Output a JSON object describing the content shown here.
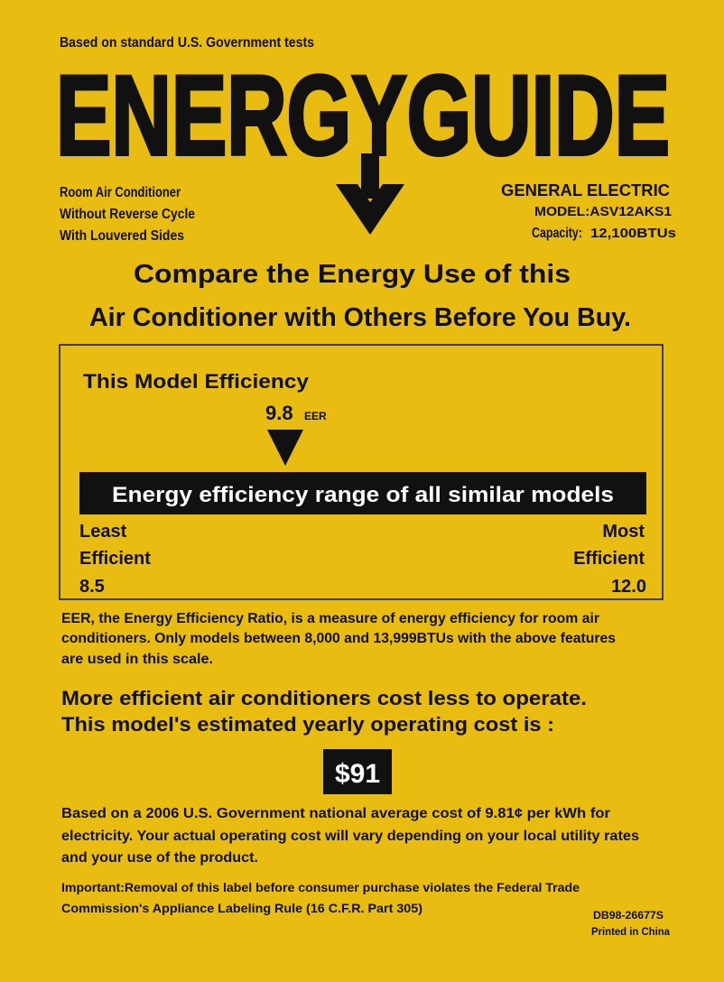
{
  "colors": {
    "background": "#E9BC12",
    "ink": "#111111",
    "inverse_text": "#FFFFFF"
  },
  "header": {
    "tagline": "Based on standard U.S. Government tests",
    "logo_text": "ENERGYGUIDE",
    "arrow_icon": "down-arrow-icon"
  },
  "product": {
    "type_lines": [
      "Room Air Conditioner",
      "Without Reverse Cycle",
      "With  Louvered Sides"
    ],
    "manufacturer": "GENERAL ELECTRIC",
    "model": "MODEL:ASV12AKS1",
    "capacity_label": "Capacity:",
    "capacity_value": "12,100BTUs"
  },
  "headline": [
    "Compare the Energy Use of this",
    "Air Conditioner with Others Before You Buy."
  ],
  "efficiency": {
    "title": "This Model Efficiency",
    "value": "9.8",
    "unit": "EER",
    "range_bar": "Energy efficiency range of all similar models",
    "least_label": [
      "Least",
      "Efficient"
    ],
    "most_label": [
      "Most",
      "Efficient"
    ],
    "min": "8.5",
    "max": "12.0",
    "note_lines": [
      "EER, the Energy Efficiency Ratio, is  a measure of energy efficiency for room air",
      "conditioners. Only models between 8,000 and 13,999BTUs with the above features",
      "are used in this scale."
    ]
  },
  "cost": {
    "lines": [
      "More efficient air conditioners cost less to operate.",
      "This model's estimated yearly operating cost is :"
    ],
    "value": "$91",
    "basis_lines": [
      "Based on a 2006 U.S. Government national average cost of 9.81¢    per kWh for",
      "electricity.  Your actual operating cost will vary depending on your local utility rates",
      "and your use of the product."
    ]
  },
  "footer": {
    "important_lines": [
      "Important:Removal of this label before consumer purchase violates the Federal Trade",
      "Commission's Appliance Labeling Rule (16 C.F.R. Part 305)"
    ],
    "part_number": "DB98-26677S",
    "printed": "Printed  in China"
  }
}
